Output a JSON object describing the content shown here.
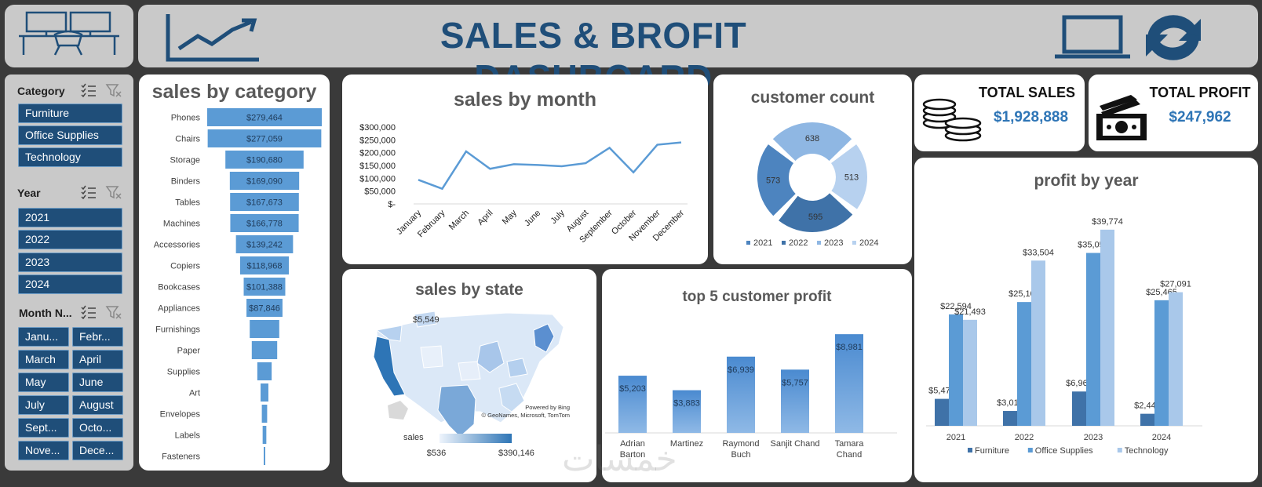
{
  "header": {
    "title": "SALES & BROFIT DASHBOARD"
  },
  "slicers": {
    "category": {
      "title": "Category",
      "items": [
        "Furniture",
        "Office Supplies",
        "Technology"
      ]
    },
    "year": {
      "title": "Year",
      "items": [
        "2021",
        "2022",
        "2023",
        "2024"
      ]
    },
    "month": {
      "title": "Month N...",
      "items": [
        "Janu...",
        "Febr...",
        "March",
        "April",
        "May",
        "June",
        "July",
        "August",
        "Sept...",
        "Octo...",
        "Nove...",
        "Dece..."
      ]
    }
  },
  "kpis": {
    "total_sales": {
      "label": "TOTAL SALES",
      "value": "$1,928,888"
    },
    "total_profit": {
      "label": "TOTAL PROFIT",
      "value": "$247,962"
    }
  },
  "map": {
    "title": "sales by state",
    "callout": "$5,549",
    "attribution_1": "Powered by Bing",
    "attribution_2": "© GeoNames, Microsoft, TomTom",
    "legend_label": "sales",
    "legend_min": "$536",
    "legend_max": "$390,146"
  },
  "watermark": "خمسات",
  "colors": {
    "navy": "#1f4e79",
    "mid": "#5b9bd5",
    "light": "#a9c8ea",
    "dark": "#3f72a8",
    "accent": "#2e75b6"
  },
  "chart_data": [
    {
      "id": "category",
      "type": "bar",
      "title": "sales by category",
      "categories": [
        "Phones",
        "Chairs",
        "Storage",
        "Binders",
        "Tables",
        "Machines",
        "Accessories",
        "Copiers",
        "Bookcases",
        "Appliances",
        "Furnishings",
        "Paper",
        "Supplies",
        "Art",
        "Envelopes",
        "Labels",
        "Fasteners"
      ],
      "values": [
        279464,
        277059,
        190680,
        169090,
        167673,
        166778,
        139242,
        118968,
        101388,
        87846,
        72000,
        62000,
        35000,
        19000,
        13000,
        9000,
        3000
      ],
      "labels": [
        "$279,464",
        "$277,059",
        "$190,680",
        "$169,090",
        "$167,673",
        "$166,778",
        "$139,242",
        "$118,968",
        "$101,388",
        "$87,846",
        "",
        "",
        "",
        "",
        "",
        "",
        ""
      ]
    },
    {
      "id": "month",
      "type": "line",
      "title": "sales by month",
      "categories": [
        "January",
        "February",
        "March",
        "April",
        "May",
        "June",
        "July",
        "August",
        "September",
        "October",
        "November",
        "December"
      ],
      "values": [
        94000,
        59000,
        205000,
        137000,
        155000,
        152000,
        147000,
        159000,
        219000,
        123000,
        231000,
        240000
      ],
      "yticks": [
        "$300,000",
        "$250,000",
        "$200,000",
        "$150,000",
        "$100,000",
        "$50,000",
        "$-"
      ],
      "ylim": [
        0,
        300000
      ]
    },
    {
      "id": "customers",
      "type": "pie",
      "title": "customer count",
      "categories": [
        "2021",
        "2022",
        "2023",
        "2024"
      ],
      "values": [
        638,
        513,
        595,
        573
      ],
      "labels": [
        "638",
        "513",
        "595",
        "573"
      ],
      "legend": [
        "2021",
        "2022",
        "2023",
        "2024"
      ]
    },
    {
      "id": "top5",
      "type": "bar",
      "title": "top 5 customer profit",
      "categories": [
        [
          "Adrian",
          "Barton"
        ],
        [
          "Martinez",
          ""
        ],
        [
          "Raymond",
          "Buch"
        ],
        [
          "Sanjit Chand",
          ""
        ],
        [
          "Tamara",
          "Chand"
        ]
      ],
      "values": [
        5203,
        3883,
        6939,
        5757,
        8981
      ],
      "labels": [
        "$5,203",
        "$3,883",
        "$6,939",
        "$5,757",
        "$8,981"
      ]
    },
    {
      "id": "profit_year",
      "type": "bar",
      "title": "profit by year",
      "categories": [
        "2021",
        "2022",
        "2023",
        "2024"
      ],
      "series": [
        {
          "name": "Furniture",
          "values": [
            5470,
            3015,
            6960,
            2444
          ],
          "labels": [
            "$5,470",
            "$3,015",
            "$6,960",
            "$2,444"
          ]
        },
        {
          "name": "Office Supplies",
          "values": [
            22594,
            25100,
            35053,
            25465
          ],
          "labels": [
            "$22,594",
            "$25,100",
            "$35,053",
            "$25,465"
          ]
        },
        {
          "name": "Technology",
          "values": [
            21493,
            33504,
            39774,
            27091
          ],
          "labels": [
            "$21,493",
            "$33,504",
            "$39,774",
            "$27,091"
          ]
        }
      ],
      "ylim": [
        0,
        45000
      ]
    }
  ]
}
